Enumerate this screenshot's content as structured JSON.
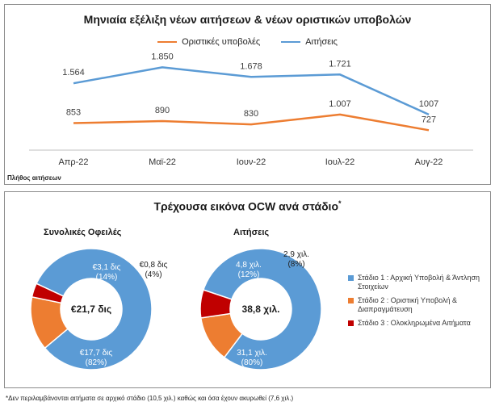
{
  "line_panel": {
    "title": "Μηνιαία εξέλιξη νέων αιτήσεων & νέων οριστικών υποβολών",
    "y_note": "Πλήθος αιτήσεων"
  },
  "donut_panel": {
    "title": "Τρέχουσα εικόνα OCW ανά στάδιο",
    "title_mark": "*",
    "footnote": "*Δεν περιλαμβάνονται αιτήματα σε αρχικό στάδιο (10,5 χιλ.) καθώς και όσα έχουν ακυρωθεί (7,6 χιλ.)"
  },
  "colors": {
    "orange": "#ED7D31",
    "blue": "#5B9BD5",
    "red": "#C00000"
  },
  "chart_data": [
    {
      "type": "line",
      "title": "Μηνιαία εξέλιξη νέων αιτήσεων & νέων οριστικών υποβολών",
      "ylabel": "Πλήθος αιτήσεων",
      "categories": [
        "Απρ-22",
        "Μαϊ-22",
        "Ιουν-22",
        "Ιουλ-22",
        "Αυγ-22"
      ],
      "legend": "top-center",
      "grid": false,
      "ylim": [
        400,
        2100
      ],
      "series": [
        {
          "name": "Οριστικές υποβολές",
          "color": "#ED7D31",
          "values": [
            853,
            890,
            830,
            1007,
            727
          ],
          "labels": [
            "853",
            "890",
            "830",
            "1.007",
            "727"
          ]
        },
        {
          "name": "Αιτήσεις",
          "color": "#5B9BD5",
          "values": [
            1564,
            1850,
            1678,
            1721,
            1007
          ],
          "labels": [
            "1.564",
            "1.850",
            "1.678",
            "1.721",
            "1007"
          ]
        }
      ]
    },
    {
      "type": "pie",
      "title": "Συνολικές Οφειλές",
      "center_label": "€21,7 δις",
      "slices": [
        {
          "stage": "Στάδιο 1",
          "value": 17.7,
          "percent": 82,
          "label": "€17,7 δις",
          "pct_label": "(82%)",
          "color": "#5B9BD5"
        },
        {
          "stage": "Στάδιο 2",
          "value": 3.1,
          "percent": 14,
          "label": "€3,1 δις",
          "pct_label": "(14%)",
          "color": "#ED7D31"
        },
        {
          "stage": "Στάδιο 3",
          "value": 0.8,
          "percent": 4,
          "label": "€0,8 δις",
          "pct_label": "(4%)",
          "color": "#C00000"
        }
      ]
    },
    {
      "type": "pie",
      "title": "Αιτήσεις",
      "center_label": "38,8 χιλ.",
      "slices": [
        {
          "stage": "Στάδιο 1",
          "value": 31.1,
          "percent": 80,
          "label": "31,1 χιλ.",
          "pct_label": "(80%)",
          "color": "#5B9BD5"
        },
        {
          "stage": "Στάδιο 2",
          "value": 4.8,
          "percent": 12,
          "label": "4,8 χιλ.",
          "pct_label": "(12%)",
          "color": "#ED7D31"
        },
        {
          "stage": "Στάδιο 3",
          "value": 2.9,
          "percent": 8,
          "label": "2,9 χιλ.",
          "pct_label": "(8%)",
          "color": "#C00000"
        }
      ]
    }
  ],
  "stage_legend": [
    {
      "text": "Στάδιο 1 : Αρχική Υποβολή & Άντληση Στοιχείων",
      "color": "#5B9BD5"
    },
    {
      "text": "Στάδιο 2 : Οριστική Υποβολή & Διαπραγμάτευση",
      "color": "#ED7D31"
    },
    {
      "text": "Στάδιο 3 : Ολοκληρωμένα Αιτήματα",
      "color": "#C00000"
    }
  ]
}
